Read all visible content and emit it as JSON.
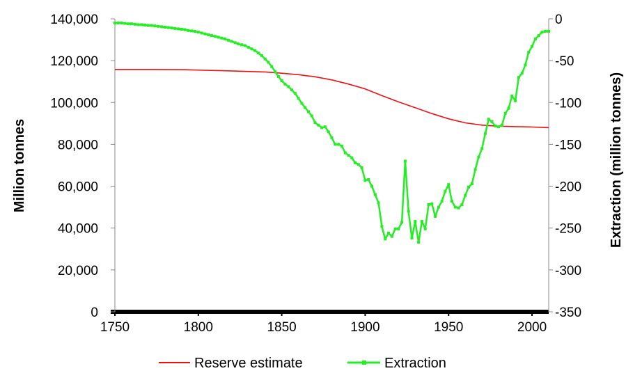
{
  "chart_data": {
    "type": "line",
    "title": "",
    "xlabel": "",
    "ylabel_left": "Million tonnes",
    "ylabel_right": "Extraction (million tonnes)",
    "xlim": [
      1750,
      2010
    ],
    "x_ticks": [
      "1750",
      "1800",
      "1850",
      "1900",
      "1950",
      "2000"
    ],
    "x_tick_values": [
      1750,
      1800,
      1850,
      1900,
      1950,
      2000
    ],
    "ylim_left": [
      0,
      140000
    ],
    "y_left_ticks": [
      "0",
      "20,000",
      "40,000",
      "60,000",
      "80,000",
      "100,000",
      "120,000",
      "140,000"
    ],
    "y_left_tick_values": [
      0,
      20000,
      40000,
      60000,
      80000,
      100000,
      120000,
      140000
    ],
    "ylim_right": [
      -350,
      0
    ],
    "y_right_ticks": [
      "-350",
      "-300",
      "-250",
      "-200",
      "-150",
      "-100",
      "-50",
      "0"
    ],
    "y_right_tick_values": [
      -350,
      -300,
      -250,
      -200,
      -150,
      -100,
      -50,
      0
    ],
    "grid": false,
    "legend_position": "bottom",
    "series": [
      {
        "name": "Reserve estimate",
        "axis": "left",
        "color": "#ee1111",
        "marker": "none",
        "x": [
          1750,
          1770,
          1790,
          1800,
          1820,
          1840,
          1850,
          1860,
          1870,
          1880,
          1890,
          1900,
          1910,
          1920,
          1930,
          1940,
          1950,
          1960,
          1970,
          1980,
          1990,
          2000,
          2010
        ],
        "values": [
          115800,
          115800,
          115700,
          115500,
          115100,
          114600,
          114000,
          113300,
          112300,
          110800,
          108800,
          106500,
          103300,
          100300,
          97500,
          94700,
          92200,
          90300,
          89200,
          88700,
          88500,
          88300,
          88000
        ]
      },
      {
        "name": "Extraction",
        "axis": "right",
        "color": "#22ee22",
        "marker": "square",
        "x": [
          1750,
          1752,
          1754,
          1756,
          1758,
          1760,
          1762,
          1764,
          1766,
          1768,
          1770,
          1772,
          1774,
          1776,
          1778,
          1780,
          1782,
          1784,
          1786,
          1788,
          1790,
          1792,
          1794,
          1796,
          1798,
          1800,
          1802,
          1804,
          1806,
          1808,
          1810,
          1812,
          1814,
          1816,
          1818,
          1820,
          1822,
          1824,
          1826,
          1828,
          1830,
          1832,
          1834,
          1836,
          1838,
          1840,
          1842,
          1844,
          1846,
          1848,
          1850,
          1852,
          1854,
          1856,
          1858,
          1860,
          1862,
          1864,
          1866,
          1868,
          1870,
          1872,
          1874,
          1876,
          1878,
          1880,
          1882,
          1884,
          1886,
          1888,
          1890,
          1892,
          1894,
          1896,
          1898,
          1900,
          1902,
          1904,
          1906,
          1908,
          1910,
          1912,
          1914,
          1916,
          1918,
          1920,
          1922,
          1924,
          1926,
          1928,
          1930,
          1932,
          1934,
          1936,
          1938,
          1940,
          1942,
          1944,
          1946,
          1948,
          1950,
          1952,
          1954,
          1956,
          1958,
          1960,
          1962,
          1964,
          1966,
          1968,
          1970,
          1972,
          1974,
          1976,
          1978,
          1980,
          1982,
          1984,
          1986,
          1988,
          1990,
          1992,
          1994,
          1996,
          1998,
          2000,
          2002,
          2004,
          2006,
          2008,
          2010
        ],
        "values": [
          -5,
          -5,
          -5,
          -5.5,
          -6,
          -6,
          -6.5,
          -7,
          -7,
          -7.5,
          -8,
          -8,
          -8.5,
          -9,
          -9.5,
          -10,
          -10.5,
          -11,
          -11.5,
          -12,
          -12.5,
          -13,
          -14,
          -14.5,
          -15,
          -16,
          -17,
          -18,
          -19,
          -20,
          -21,
          -22,
          -23,
          -24,
          -25.5,
          -27,
          -28.5,
          -30,
          -31,
          -32,
          -34,
          -36,
          -38,
          -41,
          -44,
          -48,
          -52,
          -57,
          -63,
          -69,
          -74,
          -78,
          -81,
          -85,
          -89,
          -95,
          -101,
          -106,
          -111,
          -116,
          -124,
          -127,
          -130,
          -129,
          -135,
          -142,
          -150,
          -150,
          -152,
          -160,
          -163,
          -166,
          -172,
          -174,
          -178,
          -193,
          -192,
          -200,
          -210,
          -220,
          -248,
          -263,
          -256,
          -260,
          -251,
          -251,
          -243,
          -170,
          -230,
          -262,
          -242,
          -267,
          -242,
          -251,
          -222,
          -221,
          -236,
          -225,
          -218,
          -206,
          -198,
          -218,
          -225,
          -226,
          -222,
          -211,
          -201,
          -197,
          -180,
          -165,
          -155,
          -137,
          -120,
          -123,
          -128,
          -129,
          -127,
          -113,
          -107,
          -92,
          -98,
          -70,
          -65,
          -55,
          -40,
          -33,
          -24,
          -20,
          -16,
          -15,
          -15
        ]
      }
    ]
  },
  "legend": {
    "items": [
      {
        "label": "Reserve estimate",
        "color": "#ee1111"
      },
      {
        "label": "Extraction",
        "color": "#22ee22"
      }
    ]
  }
}
